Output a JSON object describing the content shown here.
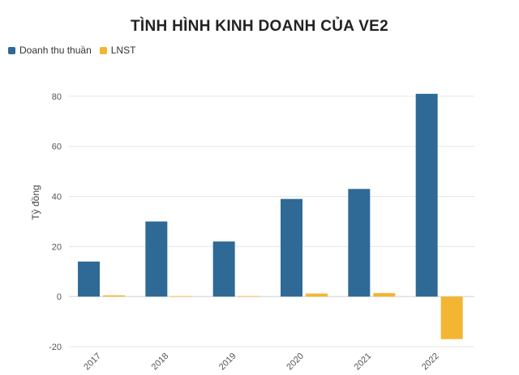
{
  "chart_data": {
    "type": "bar",
    "title": "TÌNH HÌNH KINH DOANH CỦA VE2",
    "ylabel": "Tỷ đồng",
    "xlabel": "",
    "categories": [
      "2017",
      "2018",
      "2019",
      "2020",
      "2021",
      "2022"
    ],
    "series": [
      {
        "name": "Doanh thu thuần",
        "color": "#2f6a96",
        "values": [
          14,
          30,
          22,
          39,
          43,
          81
        ]
      },
      {
        "name": "LNST",
        "color": "#f2b632",
        "values": [
          0.5,
          0.2,
          0.2,
          1.2,
          1.4,
          -17
        ]
      }
    ],
    "ylim": [
      -20,
      90
    ],
    "yticks": [
      "-20",
      "0",
      "20",
      "40",
      "60",
      "80"
    ],
    "grid": true,
    "legend_position": "top-left"
  }
}
